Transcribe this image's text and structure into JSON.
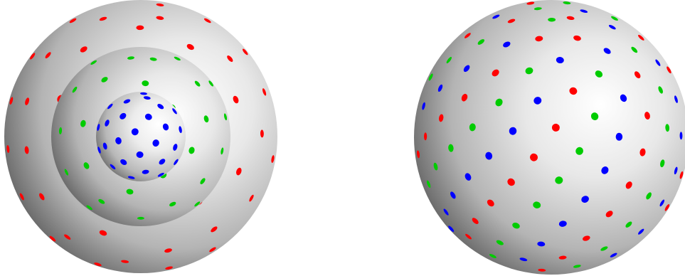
{
  "colors": {
    "background": "#ffffff",
    "sphere_highlight": "#ffffff",
    "sphere_mid": "#cfcfcf",
    "sphere_shadow": "#5a5a5a",
    "sphere_edge": "#2e2e2e",
    "dot_red": "#ff0000",
    "dot_green": "#00cc00",
    "dot_blue": "#0000ff"
  },
  "panels": [
    {
      "name": "left-nested-spheres",
      "shells": [
        {
          "name": "outer-shell",
          "dot_color": "red"
        },
        {
          "name": "middle-shell",
          "dot_color": "green"
        },
        {
          "name": "inner-shell",
          "dot_color": "blue"
        }
      ]
    },
    {
      "name": "right-mixed-sphere",
      "dot_colors": [
        "red",
        "green",
        "blue"
      ]
    }
  ]
}
